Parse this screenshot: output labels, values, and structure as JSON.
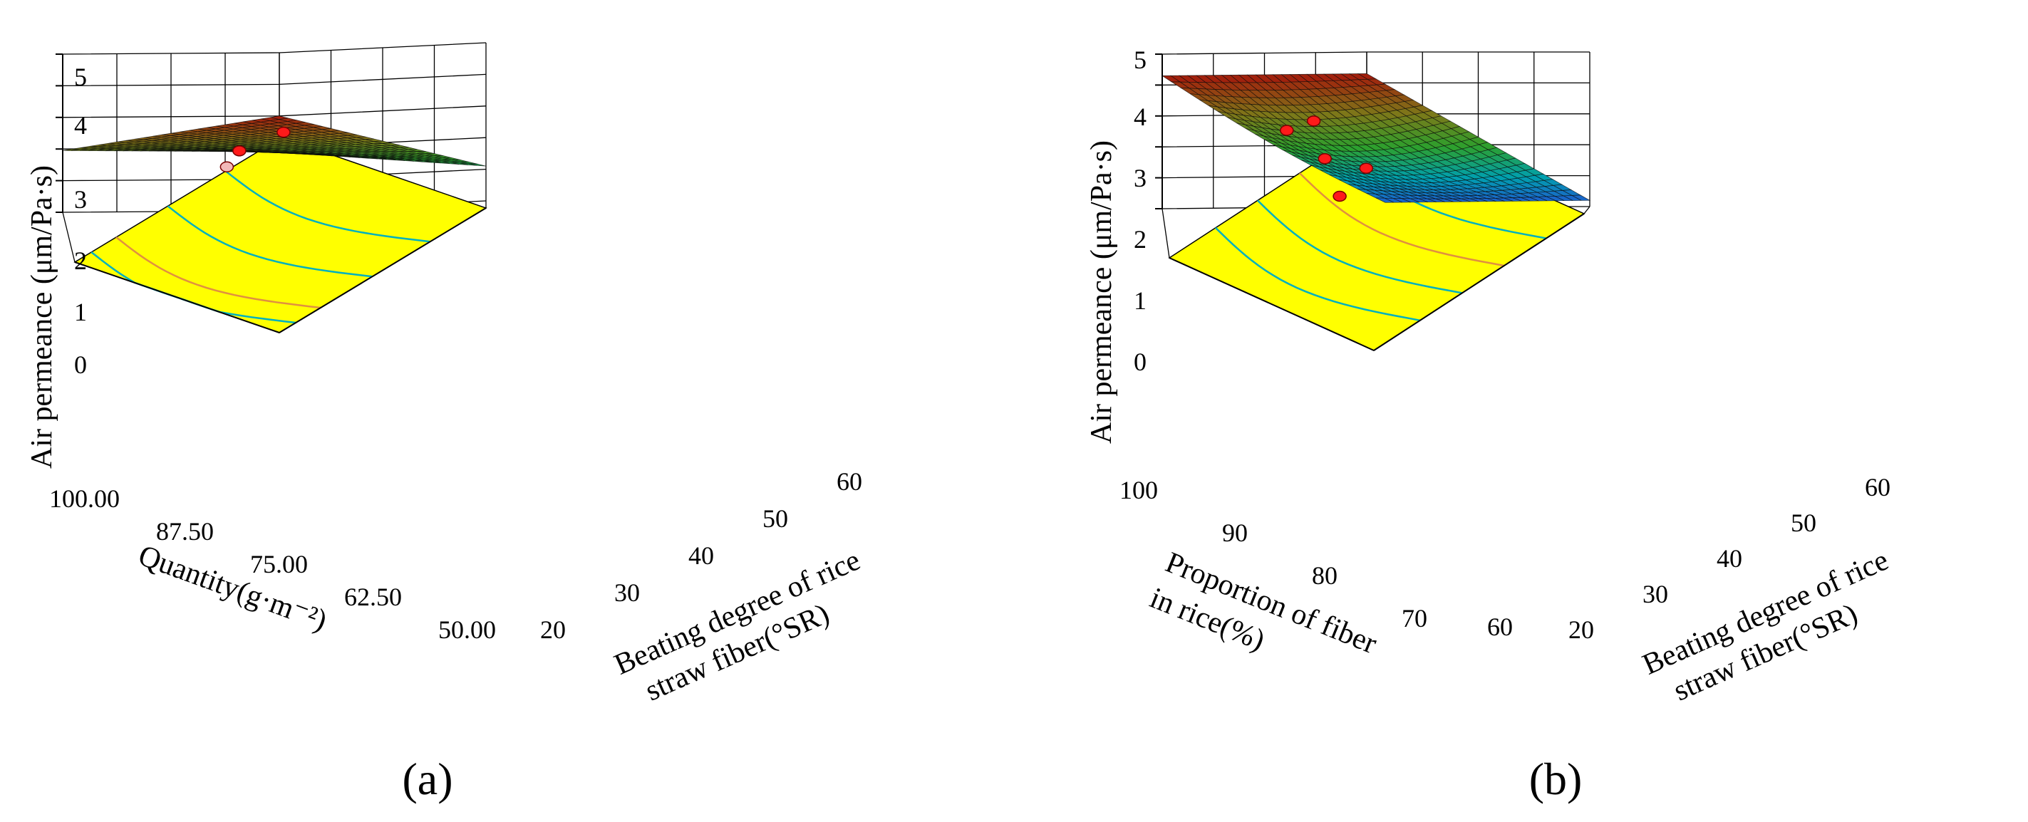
{
  "chart_data": [
    {
      "panel_label": "(a)",
      "type": "surface3d",
      "zlabel": "Air permeance (μm/Pa·s)",
      "zlim": [
        0,
        5
      ],
      "zticks": [
        "0",
        "1",
        "2",
        "3",
        "4",
        "5"
      ],
      "left_axis": {
        "label": "Quantity(g·m⁻²)",
        "range": [
          50,
          100
        ],
        "ticks": [
          "100.00",
          "87.50",
          "75.00",
          "62.50",
          "50.00"
        ]
      },
      "right_axis": {
        "label_line1": "Beating degree of rice",
        "label_line2": "straw fiber(°SR)",
        "range": [
          20,
          60
        ],
        "ticks": [
          "20",
          "30",
          "40",
          "50",
          "60"
        ]
      },
      "corners": {
        "far": 3.0,
        "left": 1.95,
        "right": 1.1,
        "front": 1.6
      },
      "points": [
        {
          "q": 95,
          "b": 25,
          "z": 2.45
        },
        {
          "q": 55,
          "b": 50,
          "z": 1.7
        },
        {
          "q": 70,
          "b": 35,
          "z": 1.3,
          "below": true
        }
      ],
      "contours": [
        {
          "u": 0.27,
          "color": "#00b0c0"
        },
        {
          "u": 0.55,
          "color": "#00b0c0"
        },
        {
          "u": 0.8,
          "color": "#e09040"
        },
        {
          "u": 0.92,
          "color": "#00b0c0"
        }
      ]
    },
    {
      "panel_label": "(b)",
      "type": "surface3d",
      "zlabel": "Air permeance (μm/Pa·s)",
      "zlim": [
        0,
        5
      ],
      "zticks": [
        "0",
        "1",
        "2",
        "3",
        "4",
        "5"
      ],
      "left_axis": {
        "label_line1": "Proportion of fiber",
        "label_line2": "in rice(%)",
        "range": [
          60,
          100
        ],
        "ticks": [
          "100",
          "90",
          "80",
          "70",
          "60"
        ]
      },
      "right_axis": {
        "label_line1": "Beating degree of rice",
        "label_line2": "straw fiber(°SR)",
        "range": [
          20,
          60
        ],
        "ticks": [
          "20",
          "30",
          "40",
          "50",
          "60"
        ]
      },
      "corners": {
        "far": 4.3,
        "left": 4.3,
        "right": 0.2,
        "front": 0.2
      },
      "points": [
        {
          "q": 82,
          "b": 27,
          "z": 2.8
        },
        {
          "q": 80,
          "b": 24,
          "z": 2.5
        },
        {
          "q": 70,
          "b": 40,
          "z": 1.6
        },
        {
          "q": 65,
          "b": 52,
          "z": 1.3
        },
        {
          "q": 62,
          "b": 50,
          "z": 0.4
        }
      ],
      "contours": [
        {
          "u": 0.18,
          "color": "#00b0c0"
        },
        {
          "u": 0.38,
          "color": "#e09040"
        },
        {
          "u": 0.58,
          "color": "#00b0c0"
        },
        {
          "u": 0.78,
          "color": "#00b0c0"
        }
      ]
    }
  ]
}
